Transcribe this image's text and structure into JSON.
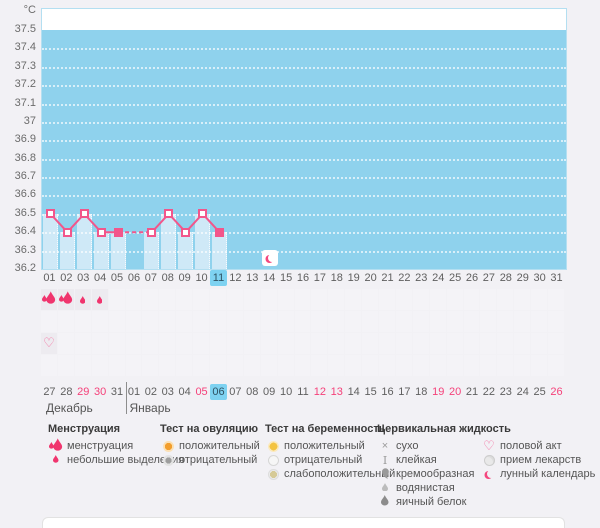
{
  "colors": {
    "accent_pink": "#f2568b",
    "menstruation_red": "#f0356e",
    "weekend_red": "#f5417a",
    "plot_blue": "#8fd2ed",
    "bar_blue": "#cfe9f7",
    "selected_blue": "#7ed2f1",
    "ovulation_orange": "#f29e2d",
    "pregnancy_yellow": "#f3c340"
  },
  "chart_data": {
    "type": "line",
    "title": "",
    "ylabel": "°C",
    "unit_label": "°C",
    "y_ticks": [
      "37.5",
      "37.4",
      "37.3",
      "37.2",
      "37.1",
      "37",
      "36.9",
      "36.8",
      "36.7",
      "36.6",
      "36.5",
      "36.4",
      "36.3",
      "36.2"
    ],
    "ylim": [
      36.2,
      37.6
    ],
    "grid": "horizontal-dotted",
    "x": [
      "01",
      "02",
      "03",
      "04",
      "05",
      "06",
      "07",
      "08",
      "09",
      "10",
      "11",
      "12",
      "13",
      "14",
      "15",
      "16",
      "17",
      "18",
      "19",
      "20",
      "21",
      "22",
      "23",
      "24",
      "25",
      "26",
      "27",
      "28",
      "29",
      "30",
      "31"
    ],
    "series": [
      {
        "name": "temperature",
        "values": [
          36.5,
          36.4,
          36.5,
          36.4,
          36.4,
          null,
          36.4,
          36.5,
          36.4,
          36.5,
          36.4,
          null,
          null,
          null,
          null,
          null,
          null,
          null,
          null,
          null,
          null,
          null,
          null,
          null,
          null,
          null,
          null,
          null,
          null,
          null,
          null
        ]
      }
    ],
    "filled_marker_days": [
      5,
      11
    ],
    "dashed_segment_between_days": [
      5,
      7
    ],
    "selected_cycle_day": "11",
    "lunar_calendar_day": "14"
  },
  "symbol_rows": {
    "row_count": 4,
    "menstruation_row": [
      {
        "day": 1,
        "type": "menstruation"
      },
      {
        "day": 2,
        "type": "menstruation"
      },
      {
        "day": 3,
        "type": "spotting"
      },
      {
        "day": 4,
        "type": "spotting"
      }
    ],
    "intercourse_row": [
      {
        "day": 1,
        "type": "intercourse"
      }
    ]
  },
  "calendar": {
    "months": [
      {
        "name": "Декабрь",
        "days": [
          "27",
          "28",
          "29",
          "30",
          "31"
        ],
        "weekend_days": [
          "29",
          "30"
        ]
      },
      {
        "name": "Январь",
        "days": [
          "01",
          "02",
          "03",
          "04",
          "05",
          "06",
          "07",
          "08",
          "09",
          "10",
          "11",
          "12",
          "13",
          "14",
          "15",
          "16",
          "17",
          "18",
          "19",
          "20",
          "21",
          "22",
          "23",
          "24",
          "25",
          "26"
        ],
        "weekend_days": [
          "05",
          "12",
          "13",
          "19",
          "20",
          "26"
        ],
        "today": "06"
      }
    ]
  },
  "legend": {
    "columns": [
      {
        "header": "Менструация",
        "items": [
          {
            "icon": "menstruation-icon",
            "label": "менструация"
          },
          {
            "icon": "spotting-icon",
            "label": "небольшие выделения"
          }
        ]
      },
      {
        "header": "Тест на овуляцию",
        "items": [
          {
            "icon": "ovulation-positive-icon",
            "label": "положительный"
          },
          {
            "icon": "ovulation-negative-icon",
            "label": "отрицательный"
          }
        ]
      },
      {
        "header": "Тест на беременность",
        "items": [
          {
            "icon": "pregnancy-positive-icon",
            "label": "положительный"
          },
          {
            "icon": "pregnancy-negative-icon",
            "label": "отрицательный"
          },
          {
            "icon": "pregnancy-weak-positive-icon",
            "label": "слабоположительный"
          }
        ]
      },
      {
        "header": "Цервикальная жидкость",
        "items": [
          {
            "icon": "dry-icon",
            "label": "сухо"
          },
          {
            "icon": "sticky-icon",
            "label": "клейкая"
          },
          {
            "icon": "creamy-icon",
            "label": "кремообразная"
          },
          {
            "icon": "watery-icon",
            "label": "водянистая"
          },
          {
            "icon": "eggwhite-icon",
            "label": "яичный белок"
          }
        ]
      },
      {
        "header": "",
        "items": [
          {
            "icon": "intercourse-icon",
            "label": "половой акт"
          },
          {
            "icon": "medication-icon",
            "label": "прием лекарств"
          },
          {
            "icon": "lunar-calendar-icon",
            "label": "лунный календарь"
          }
        ]
      }
    ]
  }
}
